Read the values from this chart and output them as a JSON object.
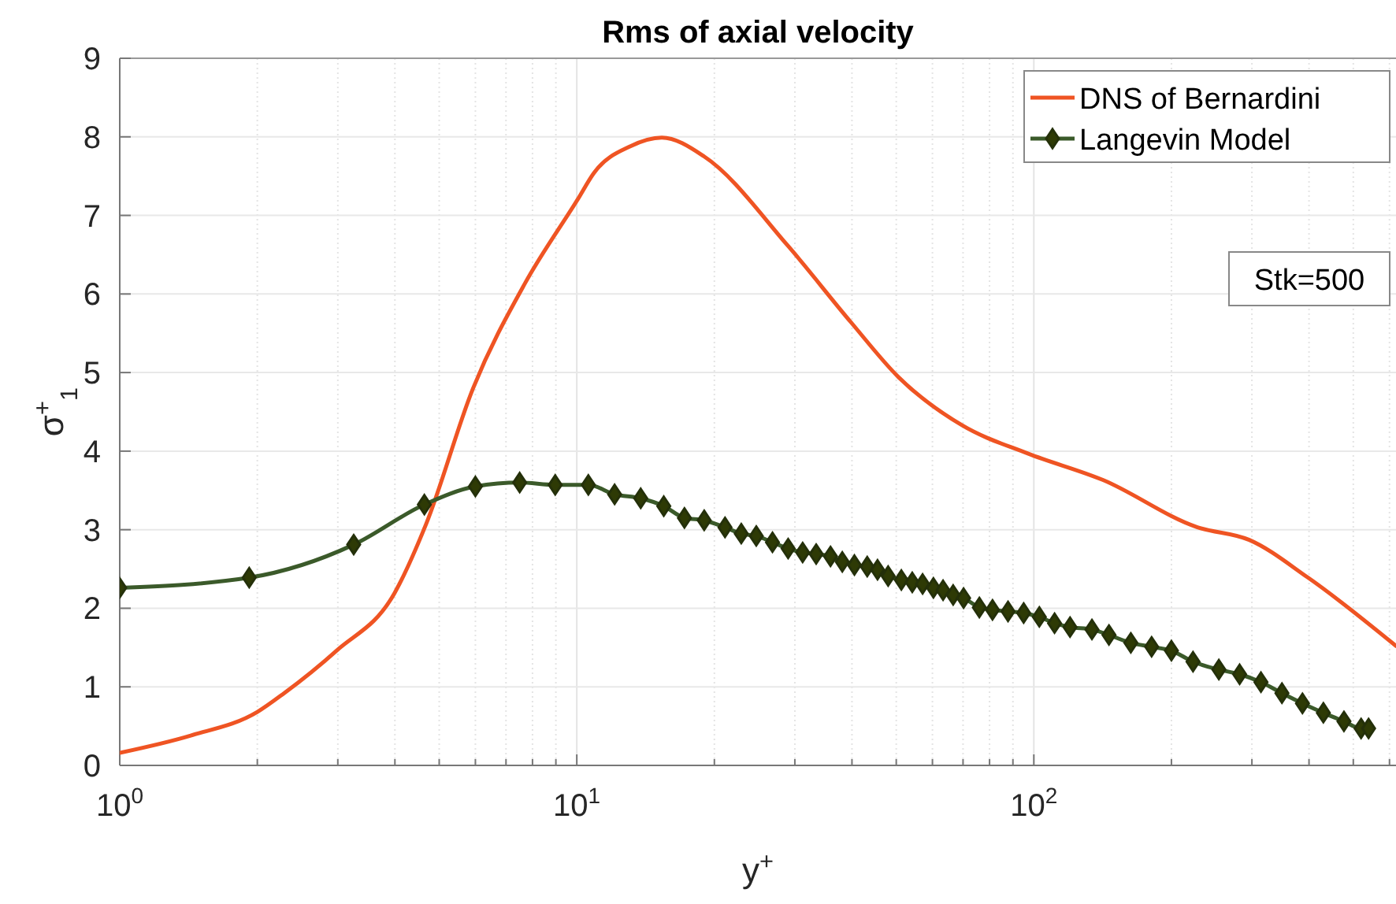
{
  "chart_data": {
    "type": "line",
    "title": "Rms of axial velocity",
    "xlabel": "y$^{+}$",
    "ylabel": "σ$^{+}$$_{1}$",
    "log": "x",
    "grid": true,
    "legend": "top right",
    "xlim": [
      1,
      620
    ],
    "ylim": [
      0,
      9
    ],
    "xticks": [
      {
        "value": 1,
        "label": "10$^{0}$"
      },
      {
        "value": 10,
        "label": "10$^{1}$"
      },
      {
        "value": 100,
        "label": "10$^{2}$"
      }
    ],
    "yticks": [
      0,
      1,
      2,
      3,
      4,
      5,
      6,
      7,
      8,
      9
    ],
    "annotations": [
      "Stk=500"
    ],
    "series": [
      {
        "name": "DNS of Bernardini",
        "color": "#ef5423",
        "marker": "none",
        "x": [
          1,
          1.43,
          2,
          2.29,
          2.98,
          3.99,
          4.68,
          5.93,
          7.71,
          10.06,
          10.9,
          13.1,
          15.35,
          19,
          29,
          39.8,
          50.6,
          69.6,
          97,
          142,
          228,
          296,
          398,
          620
        ],
        "values": [
          0.16,
          0.38,
          0.68,
          0.92,
          1.46,
          2.19,
          3.07,
          4.8,
          6.14,
          7.21,
          7.54,
          7.88,
          7.99,
          7.75,
          6.61,
          5.64,
          4.94,
          4.33,
          3.97,
          3.63,
          3.03,
          2.87,
          2.39,
          1.52
        ]
      },
      {
        "name": "Langevin Model",
        "color": "#3b5a2a",
        "marker": "diamond",
        "x": [
          1,
          1.92,
          3.25,
          4.64,
          6,
          7.5,
          8.97,
          10.6,
          12.1,
          13.8,
          15.5,
          17.2,
          19,
          21.1,
          22.9,
          24.7,
          26.8,
          29,
          31.2,
          33.4,
          35.9,
          38.1,
          40.5,
          43.2,
          45.5,
          48,
          51.3,
          54.2,
          57.1,
          60.3,
          63.3,
          66.6,
          70.2,
          76,
          81.2,
          87.8,
          95,
          102.8,
          111,
          120,
          134,
          146,
          163,
          181,
          200,
          223,
          254,
          282,
          314,
          349,
          387,
          430,
          477,
          520,
          540
        ],
        "values": [
          2.26,
          2.39,
          2.81,
          3.32,
          3.55,
          3.6,
          3.57,
          3.57,
          3.45,
          3.4,
          3.3,
          3.15,
          3.12,
          3.03,
          2.95,
          2.92,
          2.84,
          2.76,
          2.71,
          2.69,
          2.66,
          2.59,
          2.55,
          2.53,
          2.49,
          2.41,
          2.36,
          2.33,
          2.31,
          2.26,
          2.23,
          2.17,
          2.13,
          2.01,
          1.98,
          1.96,
          1.94,
          1.89,
          1.81,
          1.76,
          1.73,
          1.66,
          1.56,
          1.51,
          1.46,
          1.32,
          1.22,
          1.16,
          1.06,
          0.92,
          0.79,
          0.67,
          0.56,
          0.47,
          0.47
        ]
      }
    ]
  }
}
